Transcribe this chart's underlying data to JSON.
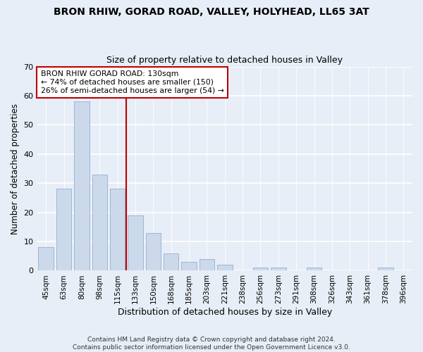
{
  "title1": "BRON RHIW, GORAD ROAD, VALLEY, HOLYHEAD, LL65 3AT",
  "title2": "Size of property relative to detached houses in Valley",
  "xlabel": "Distribution of detached houses by size in Valley",
  "ylabel": "Number of detached properties",
  "bar_color": "#ccd9ea",
  "bar_edge_color": "#8fb0d3",
  "categories": [
    "45sqm",
    "63sqm",
    "80sqm",
    "98sqm",
    "115sqm",
    "133sqm",
    "150sqm",
    "168sqm",
    "185sqm",
    "203sqm",
    "221sqm",
    "238sqm",
    "256sqm",
    "273sqm",
    "291sqm",
    "308sqm",
    "326sqm",
    "343sqm",
    "361sqm",
    "378sqm",
    "396sqm"
  ],
  "values": [
    8,
    28,
    58,
    33,
    28,
    19,
    13,
    6,
    3,
    4,
    2,
    0,
    1,
    1,
    0,
    1,
    0,
    0,
    0,
    1,
    0
  ],
  "ylim": [
    0,
    70
  ],
  "yticks": [
    0,
    10,
    20,
    30,
    40,
    50,
    60,
    70
  ],
  "vline_index": 5,
  "vline_color": "#c00000",
  "annotation_text": "BRON RHIW GORAD ROAD: 130sqm\n← 74% of detached houses are smaller (150)\n26% of semi-detached houses are larger (54) →",
  "annotation_box_color": "#ffffff",
  "annotation_box_edge_color": "#c00000",
  "footnote": "Contains HM Land Registry data © Crown copyright and database right 2024.\nContains public sector information licensed under the Open Government Licence v3.0.",
  "bg_color": "#e8eef7",
  "plot_bg_color": "#e8eef7",
  "grid_color": "#ffffff",
  "title1_fontsize": 10,
  "title2_fontsize": 9,
  "xlabel_fontsize": 9,
  "ylabel_fontsize": 8.5,
  "footnote_fontsize": 6.5
}
